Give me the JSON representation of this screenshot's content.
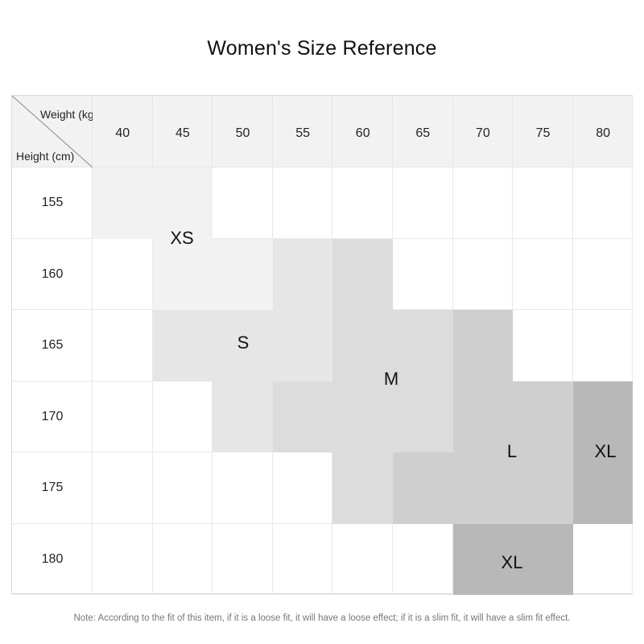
{
  "title": "Women's Size Reference",
  "corner": {
    "top_label": "Weight (kg)",
    "bottom_label": "Height (cm)"
  },
  "weights": [
    "40",
    "45",
    "50",
    "55",
    "60",
    "65",
    "70",
    "75",
    "80"
  ],
  "heights": [
    "155",
    "160",
    "165",
    "170",
    "175",
    "180"
  ],
  "sizes": [
    {
      "label": "XS",
      "color": "#f2f2f2"
    },
    {
      "label": "S",
      "color": "#e6e6e6"
    },
    {
      "label": "M",
      "color": "#dcdcdc"
    },
    {
      "label": "L",
      "color": "#cfcfcf"
    },
    {
      "label": "XL",
      "color": "#b8b8b8"
    },
    {
      "label": "XL",
      "color": "#b8b8b8"
    }
  ],
  "size_map": [
    [
      "XS",
      "XS",
      "",
      "",
      "",
      "",
      "",
      "",
      ""
    ],
    [
      "",
      "XS",
      "XS",
      "S",
      "M",
      "",
      "",
      "",
      ""
    ],
    [
      "",
      "S",
      "S",
      "S",
      "M",
      "M",
      "L",
      "",
      ""
    ],
    [
      "",
      "",
      "S",
      "M",
      "M",
      "M",
      "L",
      "L",
      "XL"
    ],
    [
      "",
      "",
      "",
      "",
      "M",
      "L",
      "L",
      "L",
      "XL"
    ],
    [
      "",
      "",
      "",
      "",
      "",
      "",
      "XL",
      "XL",
      ""
    ]
  ],
  "note": "Note: According to the fit of this item, if it is a loose fit, it will have a loose effect; if it is a slim fit, it will have a slim fit effect."
}
